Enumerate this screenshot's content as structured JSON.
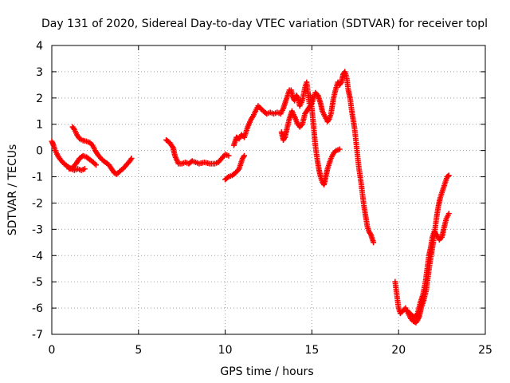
{
  "chart_data": {
    "type": "scatter",
    "title": "Day 131 of 2020, Sidereal Day-to-day VTEC variation (SDTVAR) for receiver topl",
    "xlabel": "GPS time / hours",
    "ylabel": "SDTVAR / TECUs",
    "xlim": [
      0,
      25
    ],
    "ylim": [
      -7,
      4
    ],
    "xticks": [
      0,
      5,
      10,
      15,
      20,
      25
    ],
    "yticks": [
      -7,
      -6,
      -5,
      -4,
      -3,
      -2,
      -1,
      0,
      1,
      2,
      3,
      4
    ],
    "grid": true,
    "marker": "plus",
    "marker_color": "#ff0000",
    "segments": [
      {
        "points": [
          [
            0.0,
            0.35
          ],
          [
            0.1,
            0.2
          ],
          [
            0.2,
            0.0
          ],
          [
            0.35,
            -0.2
          ],
          [
            0.5,
            -0.35
          ],
          [
            0.7,
            -0.5
          ],
          [
            0.9,
            -0.6
          ],
          [
            1.1,
            -0.7
          ],
          [
            1.3,
            -0.75
          ],
          [
            1.5,
            -0.7
          ],
          [
            1.7,
            -0.75
          ],
          [
            1.9,
            -0.7
          ]
        ]
      },
      {
        "points": [
          [
            1.2,
            0.9
          ],
          [
            1.3,
            0.8
          ],
          [
            1.45,
            0.6
          ],
          [
            1.6,
            0.45
          ],
          [
            1.8,
            0.38
          ],
          [
            2.0,
            0.35
          ],
          [
            2.2,
            0.3
          ],
          [
            2.35,
            0.2
          ],
          [
            2.5,
            0.0
          ],
          [
            2.7,
            -0.2
          ],
          [
            2.9,
            -0.35
          ],
          [
            3.1,
            -0.45
          ],
          [
            3.3,
            -0.55
          ],
          [
            3.5,
            -0.75
          ],
          [
            3.6,
            -0.85
          ],
          [
            3.75,
            -0.9
          ],
          [
            3.9,
            -0.8
          ],
          [
            4.1,
            -0.7
          ],
          [
            4.3,
            -0.55
          ],
          [
            4.5,
            -0.4
          ],
          [
            4.6,
            -0.3
          ]
        ]
      },
      {
        "points": [
          [
            1.0,
            -0.7
          ],
          [
            1.2,
            -0.65
          ],
          [
            1.4,
            -0.5
          ],
          [
            1.6,
            -0.3
          ],
          [
            1.8,
            -0.2
          ],
          [
            2.0,
            -0.25
          ],
          [
            2.2,
            -0.35
          ],
          [
            2.4,
            -0.45
          ],
          [
            2.55,
            -0.55
          ]
        ]
      },
      {
        "points": [
          [
            6.6,
            0.4
          ],
          [
            6.8,
            0.3
          ],
          [
            7.0,
            0.1
          ],
          [
            7.1,
            -0.2
          ],
          [
            7.3,
            -0.5
          ],
          [
            7.5,
            -0.5
          ],
          [
            7.7,
            -0.45
          ],
          [
            7.9,
            -0.5
          ],
          [
            8.1,
            -0.4
          ],
          [
            8.3,
            -0.45
          ],
          [
            8.5,
            -0.5
          ],
          [
            8.8,
            -0.45
          ],
          [
            9.1,
            -0.5
          ],
          [
            9.4,
            -0.5
          ],
          [
            9.6,
            -0.45
          ],
          [
            9.8,
            -0.3
          ],
          [
            10.0,
            -0.15
          ],
          [
            10.2,
            -0.2
          ]
        ]
      },
      {
        "points": [
          [
            10.0,
            -1.1
          ],
          [
            10.2,
            -1.0
          ],
          [
            10.4,
            -0.95
          ],
          [
            10.6,
            -0.85
          ],
          [
            10.8,
            -0.7
          ],
          [
            10.9,
            -0.5
          ],
          [
            11.0,
            -0.3
          ],
          [
            11.1,
            -0.2
          ]
        ]
      },
      {
        "points": [
          [
            10.5,
            0.2
          ],
          [
            10.65,
            0.5
          ],
          [
            10.8,
            0.45
          ],
          [
            10.95,
            0.6
          ],
          [
            11.1,
            0.5
          ],
          [
            11.3,
            0.9
          ],
          [
            11.5,
            1.2
          ],
          [
            11.6,
            1.3
          ],
          [
            11.75,
            1.5
          ],
          [
            11.9,
            1.7
          ],
          [
            12.05,
            1.6
          ],
          [
            12.2,
            1.5
          ],
          [
            12.4,
            1.4
          ],
          [
            12.6,
            1.45
          ],
          [
            12.8,
            1.4
          ],
          [
            13.0,
            1.45
          ],
          [
            13.2,
            1.4
          ],
          [
            13.35,
            1.6
          ],
          [
            13.5,
            1.9
          ],
          [
            13.6,
            2.1
          ],
          [
            13.7,
            2.3
          ],
          [
            13.8,
            2.3
          ],
          [
            13.9,
            2.05
          ],
          [
            14.0,
            1.9
          ],
          [
            14.1,
            2.1
          ],
          [
            14.2,
            2.0
          ],
          [
            14.3,
            1.7
          ],
          [
            14.45,
            1.9
          ],
          [
            14.6,
            2.4
          ],
          [
            14.7,
            2.6
          ],
          [
            14.85,
            1.8
          ]
        ]
      },
      {
        "points": [
          [
            13.25,
            0.7
          ],
          [
            13.35,
            0.4
          ],
          [
            13.45,
            0.5
          ],
          [
            13.55,
            0.8
          ],
          [
            13.7,
            1.2
          ],
          [
            13.85,
            1.5
          ],
          [
            14.0,
            1.3
          ],
          [
            14.15,
            1.05
          ],
          [
            14.3,
            0.9
          ],
          [
            14.45,
            1.0
          ],
          [
            14.6,
            1.4
          ],
          [
            14.8,
            1.6
          ],
          [
            15.0,
            1.8
          ],
          [
            15.1,
            2.0
          ],
          [
            15.2,
            2.2
          ],
          [
            15.35,
            2.1
          ],
          [
            15.5,
            1.8
          ],
          [
            15.6,
            1.5
          ],
          [
            15.75,
            1.3
          ],
          [
            15.9,
            1.1
          ],
          [
            16.0,
            1.2
          ],
          [
            16.1,
            1.4
          ],
          [
            16.25,
            2.0
          ],
          [
            16.4,
            2.4
          ],
          [
            16.5,
            2.6
          ],
          [
            16.6,
            2.5
          ],
          [
            16.7,
            2.6
          ],
          [
            16.8,
            2.9
          ],
          [
            16.9,
            3.0
          ],
          [
            17.0,
            2.8
          ],
          [
            17.1,
            2.3
          ],
          [
            17.2,
            2.0
          ],
          [
            17.3,
            1.5
          ],
          [
            17.45,
            0.9
          ],
          [
            17.6,
            0.0
          ],
          [
            17.7,
            -0.6
          ],
          [
            17.85,
            -1.3
          ],
          [
            18.0,
            -2.1
          ],
          [
            18.1,
            -2.5
          ],
          [
            18.2,
            -2.9
          ],
          [
            18.3,
            -3.1
          ],
          [
            18.4,
            -3.2
          ],
          [
            18.55,
            -3.5
          ]
        ]
      },
      {
        "points": [
          [
            14.9,
            2.1
          ],
          [
            15.0,
            1.6
          ],
          [
            15.1,
            0.9
          ],
          [
            15.2,
            0.2
          ],
          [
            15.3,
            -0.3
          ],
          [
            15.4,
            -0.7
          ],
          [
            15.5,
            -1.0
          ],
          [
            15.6,
            -1.2
          ],
          [
            15.7,
            -1.3
          ],
          [
            15.8,
            -1.0
          ],
          [
            15.9,
            -0.7
          ],
          [
            16.0,
            -0.5
          ],
          [
            16.1,
            -0.3
          ],
          [
            16.25,
            -0.1
          ],
          [
            16.4,
            0.0
          ],
          [
            16.6,
            0.05
          ]
        ]
      },
      {
        "points": [
          [
            19.8,
            -5.0
          ],
          [
            19.9,
            -5.5
          ],
          [
            20.0,
            -6.0
          ],
          [
            20.1,
            -6.2
          ],
          [
            20.25,
            -6.1
          ],
          [
            20.4,
            -6.0
          ],
          [
            20.55,
            -6.2
          ],
          [
            20.7,
            -6.4
          ],
          [
            20.85,
            -6.5
          ],
          [
            21.0,
            -6.55
          ],
          [
            21.1,
            -6.45
          ],
          [
            21.2,
            -6.3
          ],
          [
            21.3,
            -6.0
          ],
          [
            21.45,
            -5.7
          ],
          [
            21.6,
            -5.3
          ],
          [
            21.7,
            -4.8
          ],
          [
            21.8,
            -4.3
          ],
          [
            21.9,
            -3.9
          ],
          [
            22.0,
            -3.5
          ],
          [
            22.1,
            -3.0
          ],
          [
            22.2,
            -2.5
          ],
          [
            22.3,
            -2.1
          ],
          [
            22.4,
            -1.8
          ],
          [
            22.5,
            -1.6
          ],
          [
            22.6,
            -1.4
          ],
          [
            22.7,
            -1.2
          ],
          [
            22.8,
            -1.0
          ],
          [
            22.9,
            -0.95
          ]
        ]
      },
      {
        "points": [
          [
            20.5,
            -6.1
          ],
          [
            20.65,
            -6.2
          ],
          [
            20.8,
            -6.3
          ],
          [
            20.95,
            -6.35
          ],
          [
            21.1,
            -6.2
          ],
          [
            21.25,
            -5.8
          ],
          [
            21.4,
            -5.5
          ],
          [
            21.55,
            -5.0
          ],
          [
            21.65,
            -4.5
          ],
          [
            21.75,
            -4.0
          ],
          [
            21.85,
            -3.7
          ],
          [
            21.95,
            -3.3
          ],
          [
            22.05,
            -3.1
          ],
          [
            22.2,
            -3.2
          ],
          [
            22.35,
            -3.4
          ],
          [
            22.5,
            -3.3
          ],
          [
            22.6,
            -3.0
          ],
          [
            22.75,
            -2.6
          ],
          [
            22.9,
            -2.4
          ]
        ]
      }
    ]
  }
}
